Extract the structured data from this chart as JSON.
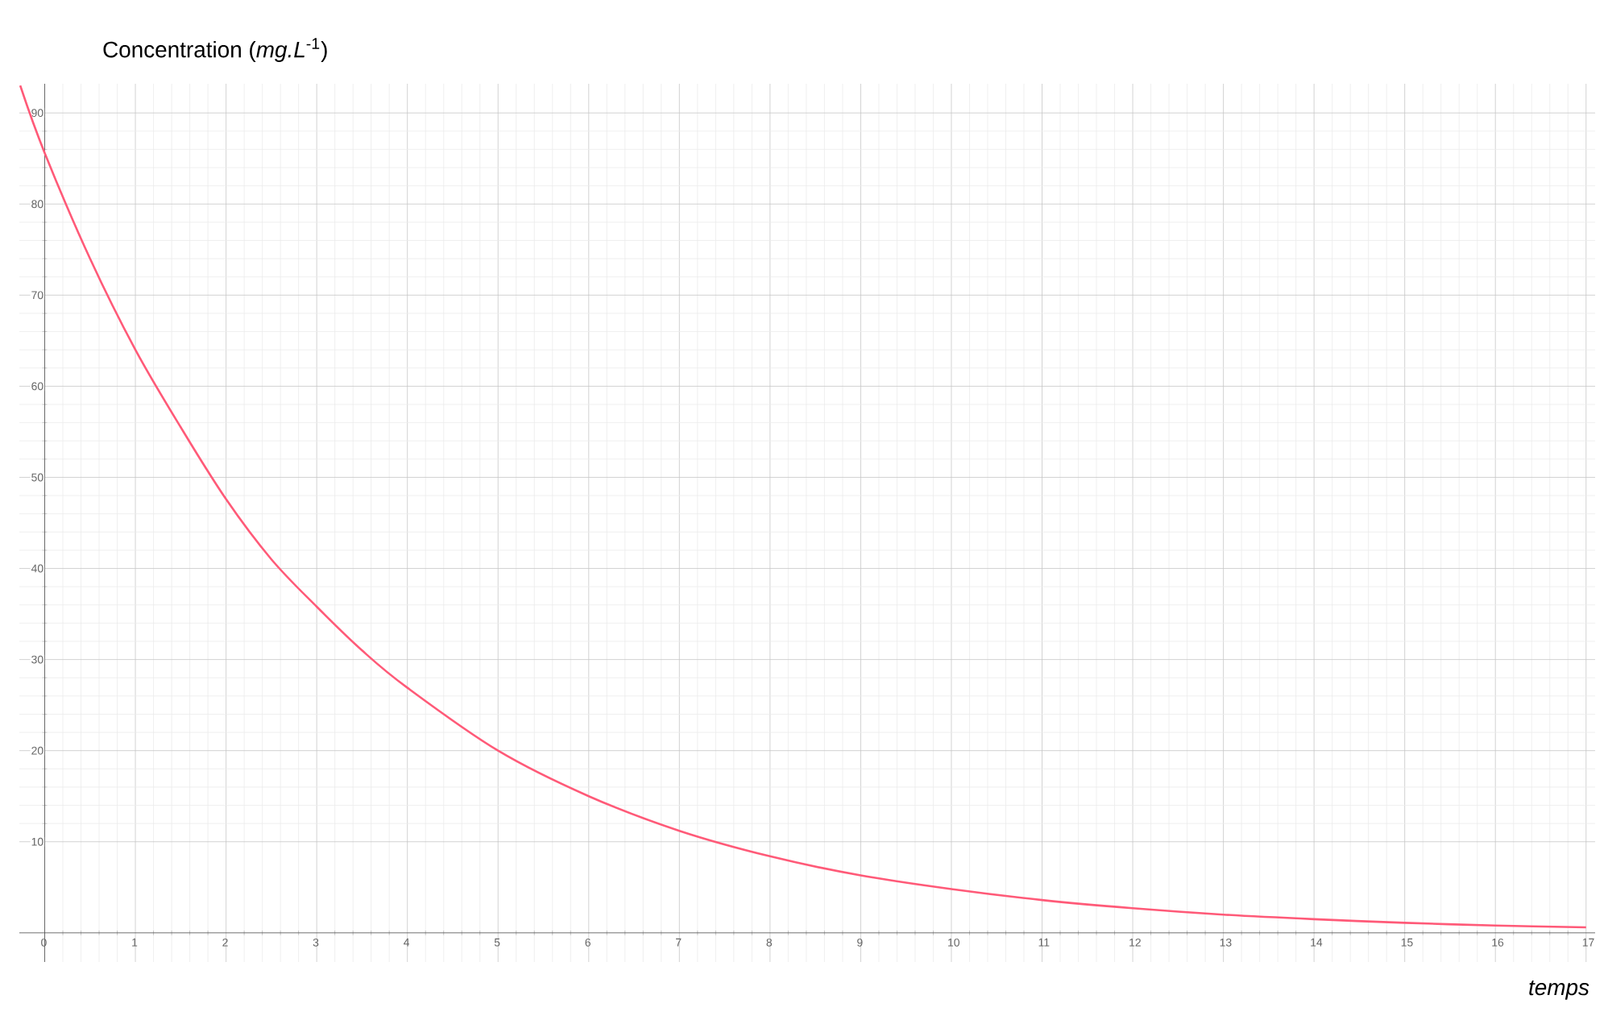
{
  "chart_data": {
    "type": "line",
    "ylabel": "Concentration (*mg.L*$^{-1}$)",
    "xlabel": "temps",
    "x": [
      -0.27,
      0,
      0.5,
      1,
      1.5,
      2,
      2.5,
      3,
      3.5,
      4,
      5,
      6,
      7,
      8,
      9,
      10,
      11,
      12,
      13,
      14,
      15,
      16,
      17
    ],
    "series": [
      {
        "color": "#ff5a78",
        "values": [
          93,
          85.6,
          74,
          64,
          55.5,
          47.6,
          41,
          35.8,
          31,
          26.9,
          20,
          15,
          11.2,
          8.4,
          6.3,
          4.8,
          3.6,
          2.7,
          2,
          1.5,
          1.1,
          0.8,
          0.6
        ]
      }
    ],
    "xlim": [
      -0.28,
      17.1
    ],
    "ylim": [
      -3.2,
      93.2
    ],
    "xticks": [
      0,
      1,
      2,
      3,
      4,
      5,
      6,
      7,
      8,
      9,
      10,
      11,
      12,
      13,
      14,
      15,
      16,
      17
    ],
    "yticks": [
      10,
      20,
      30,
      40,
      50,
      60,
      70,
      80,
      90
    ],
    "grid": true,
    "marker": "none",
    "line_style": "solid"
  }
}
